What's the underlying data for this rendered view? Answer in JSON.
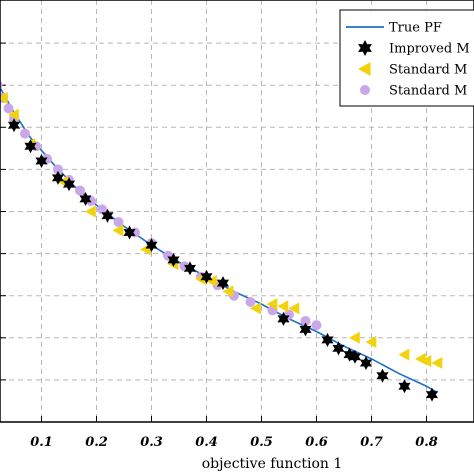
{
  "chart_data": {
    "type": "scatter",
    "xlabel": "objective function 1",
    "ylabel": "",
    "xlim": [
      0,
      0.82
    ],
    "ylim": [
      0,
      1
    ],
    "grid": true,
    "legend_placement": "top-right",
    "x_ticks": [
      "0.1",
      "0.2",
      "0.3",
      "0.4",
      "0.5",
      "0.6",
      "0.7",
      "0.8"
    ],
    "x_tick_values": [
      0.1,
      0.2,
      0.3,
      0.4,
      0.5,
      0.6,
      0.7,
      0.8
    ],
    "y_tick_values": [
      0.1,
      0.2,
      0.3,
      0.4,
      0.5,
      0.6,
      0.7,
      0.8,
      0.9
    ],
    "colors": {
      "true_pf": "#1f6fc4",
      "improved": "#000000",
      "standard_tri": "#f2d20c",
      "standard_dot": "#c9a7e8"
    },
    "series": [
      {
        "name": "True PF",
        "marker": "line",
        "x": [
          0.0,
          0.02,
          0.05,
          0.08,
          0.12,
          0.16,
          0.2,
          0.25,
          0.3,
          0.35,
          0.4,
          0.45,
          0.5,
          0.55,
          0.6,
          0.65,
          0.7,
          0.75,
          0.8,
          0.82
        ],
        "y": [
          0.86,
          0.805,
          0.735,
          0.675,
          0.615,
          0.56,
          0.515,
          0.465,
          0.42,
          0.38,
          0.345,
          0.31,
          0.28,
          0.245,
          0.215,
          0.18,
          0.15,
          0.115,
          0.085,
          0.07
        ]
      },
      {
        "name": "Improved M",
        "marker": "hexagram",
        "x": [
          0.0,
          0.05,
          0.08,
          0.1,
          0.13,
          0.15,
          0.18,
          0.22,
          0.26,
          0.3,
          0.34,
          0.37,
          0.4,
          0.43,
          0.54,
          0.58,
          0.62,
          0.64,
          0.66,
          0.67,
          0.69,
          0.72,
          0.76,
          0.81
        ],
        "y": [
          0.87,
          0.705,
          0.655,
          0.62,
          0.58,
          0.565,
          0.53,
          0.49,
          0.45,
          0.42,
          0.385,
          0.365,
          0.345,
          0.33,
          0.245,
          0.22,
          0.195,
          0.175,
          0.16,
          0.155,
          0.14,
          0.11,
          0.085,
          0.065
        ]
      },
      {
        "name": "Standard M",
        "marker": "left-triangle",
        "x": [
          0.03,
          0.05,
          0.08,
          0.14,
          0.19,
          0.24,
          0.29,
          0.34,
          0.39,
          0.41,
          0.44,
          0.49,
          0.52,
          0.54,
          0.56,
          0.67,
          0.7,
          0.76,
          0.79,
          0.8,
          0.82
        ],
        "y": [
          0.77,
          0.73,
          0.66,
          0.57,
          0.5,
          0.455,
          0.41,
          0.375,
          0.34,
          0.335,
          0.31,
          0.27,
          0.28,
          0.275,
          0.27,
          0.2,
          0.19,
          0.16,
          0.15,
          0.145,
          0.14
        ]
      },
      {
        "name": "Standard M",
        "marker": "circle",
        "x": [
          0.0,
          0.01,
          0.02,
          0.03,
          0.04,
          0.05,
          0.07,
          0.09,
          0.11,
          0.13,
          0.15,
          0.17,
          0.19,
          0.21,
          0.24,
          0.27,
          0.3,
          0.33,
          0.36,
          0.39,
          0.42,
          0.45,
          0.48,
          0.52,
          0.55,
          0.58,
          0.6
        ],
        "y": [
          0.87,
          0.84,
          0.8,
          0.77,
          0.745,
          0.72,
          0.685,
          0.655,
          0.625,
          0.6,
          0.575,
          0.55,
          0.525,
          0.505,
          0.475,
          0.45,
          0.425,
          0.395,
          0.37,
          0.345,
          0.325,
          0.3,
          0.285,
          0.265,
          0.255,
          0.24,
          0.23
        ]
      }
    ]
  }
}
